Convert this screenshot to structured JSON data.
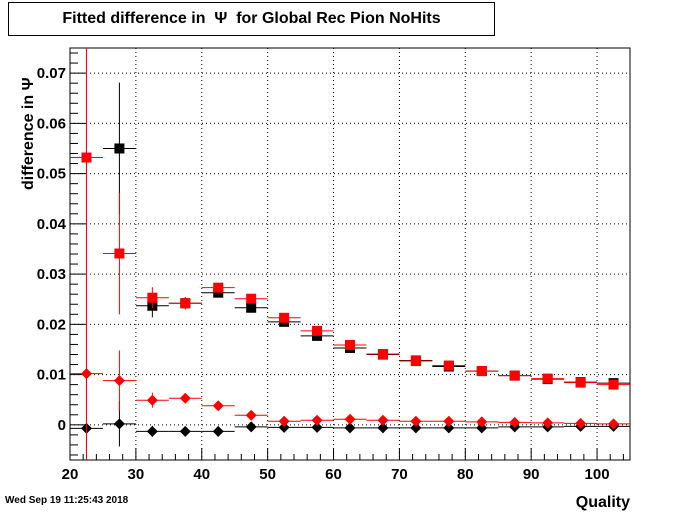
{
  "title": "Fitted difference in  Ψ  for Global Rec Pion NoHits",
  "timestamp": "Wed Sep 19 11:25:43 2018",
  "chart_data": {
    "type": "scatter",
    "title": "Fitted difference in  Ψ  for Global Rec Pion NoHits",
    "xlabel": "Quality",
    "ylabel": "difference in  Ψ",
    "xlim": [
      20,
      105
    ],
    "ylim": [
      -0.007,
      0.075
    ],
    "grid": true,
    "x_ticks": [
      20,
      30,
      40,
      50,
      60,
      70,
      80,
      90,
      100
    ],
    "y_ticks": [
      0,
      0.01,
      0.02,
      0.03,
      0.04,
      0.05,
      0.06,
      0.07
    ],
    "x_tick_labels": [
      "20",
      "30",
      "40",
      "50",
      "60",
      "70",
      "80",
      "90",
      "100"
    ],
    "y_tick_labels": [
      "0",
      "0.01",
      "0.02",
      "0.03",
      "0.04",
      "0.05",
      "0.06",
      "0.07"
    ],
    "series": [
      {
        "marker": "square",
        "color": "#000000",
        "x": [
          27.5,
          32.5,
          37.5,
          42.5,
          47.5,
          52.5,
          57.5,
          62.5,
          67.5,
          72.5,
          77.5,
          82.5,
          87.5,
          92.5,
          97.5,
          102.5
        ],
        "y": [
          0.055,
          0.0237,
          0.0242,
          0.0263,
          0.0233,
          0.0205,
          0.0177,
          0.0153,
          0.014,
          0.0128,
          0.0116,
          0.0107,
          0.0098,
          0.0091,
          0.0085,
          0.0083
        ],
        "yerr": [
          0.0131,
          0.0023,
          0.0012,
          0.0009,
          0.0007,
          0.0005,
          0.0004,
          0.0004,
          0.0003,
          0.0003,
          0.0003,
          0.0003,
          0.0003,
          0.0003,
          0.0003,
          0.0003
        ]
      },
      {
        "marker": "square",
        "color": "#ff0000",
        "x": [
          22.5,
          27.5,
          32.5,
          37.5,
          42.5,
          47.5,
          52.5,
          57.5,
          62.5,
          67.5,
          72.5,
          77.5,
          82.5,
          87.5,
          92.5,
          97.5,
          102.5
        ],
        "y": [
          0.0532,
          0.0341,
          0.0253,
          0.0242,
          0.0273,
          0.0251,
          0.0213,
          0.0187,
          0.0159,
          0.0141,
          0.0127,
          0.0118,
          0.0107,
          0.0098,
          0.0092,
          0.0084,
          0.008
        ],
        "yerr": [
          0.08,
          0.0121,
          0.0021,
          0.0012,
          0.0009,
          0.0007,
          0.0006,
          0.0005,
          0.0004,
          0.0004,
          0.0003,
          0.0003,
          0.0003,
          0.0003,
          0.0003,
          0.0003,
          0.0003
        ]
      },
      {
        "marker": "diamond",
        "color": "#000000",
        "x": [
          22.5,
          27.5,
          32.5,
          37.5,
          42.5,
          47.5,
          52.5,
          57.5,
          62.5,
          67.5,
          72.5,
          77.5,
          82.5,
          87.5,
          92.5,
          97.5,
          102.5
        ],
        "y": [
          -0.0007,
          0.0002,
          -0.0013,
          -0.0013,
          -0.0013,
          -0.0004,
          -0.0005,
          -0.0005,
          -0.0006,
          -0.0006,
          -0.0006,
          -0.0006,
          -0.0006,
          -0.0004,
          -0.0004,
          -0.0003,
          -0.0003
        ],
        "yerr": [
          0.0008,
          0.0045,
          0.0011,
          0.0005,
          0.0004,
          0.0003,
          0.0003,
          0.0002,
          0.0002,
          0.0002,
          0.0002,
          0.0002,
          0.0002,
          0.0002,
          0.0002,
          0.0002,
          0.0002
        ]
      },
      {
        "marker": "diamond",
        "color": "#ff0000",
        "x": [
          22.5,
          27.5,
          32.5,
          37.5,
          42.5,
          47.5,
          52.5,
          57.5,
          62.5,
          67.5,
          72.5,
          77.5,
          82.5,
          87.5,
          92.5,
          97.5,
          102.5
        ],
        "y": [
          0.0102,
          0.0088,
          0.0049,
          0.0053,
          0.0038,
          0.0019,
          0.0007,
          0.0009,
          0.0011,
          0.0009,
          0.0007,
          0.0007,
          0.0006,
          0.0005,
          0.0004,
          0.0003,
          0.0002
        ],
        "yerr": [
          0.08,
          0.006,
          0.0015,
          0.0006,
          0.0004,
          0.0003,
          0.0003,
          0.0002,
          0.0002,
          0.0002,
          0.0002,
          0.0002,
          0.0002,
          0.0002,
          0.0002,
          0.0002,
          0.0002
        ]
      }
    ]
  }
}
